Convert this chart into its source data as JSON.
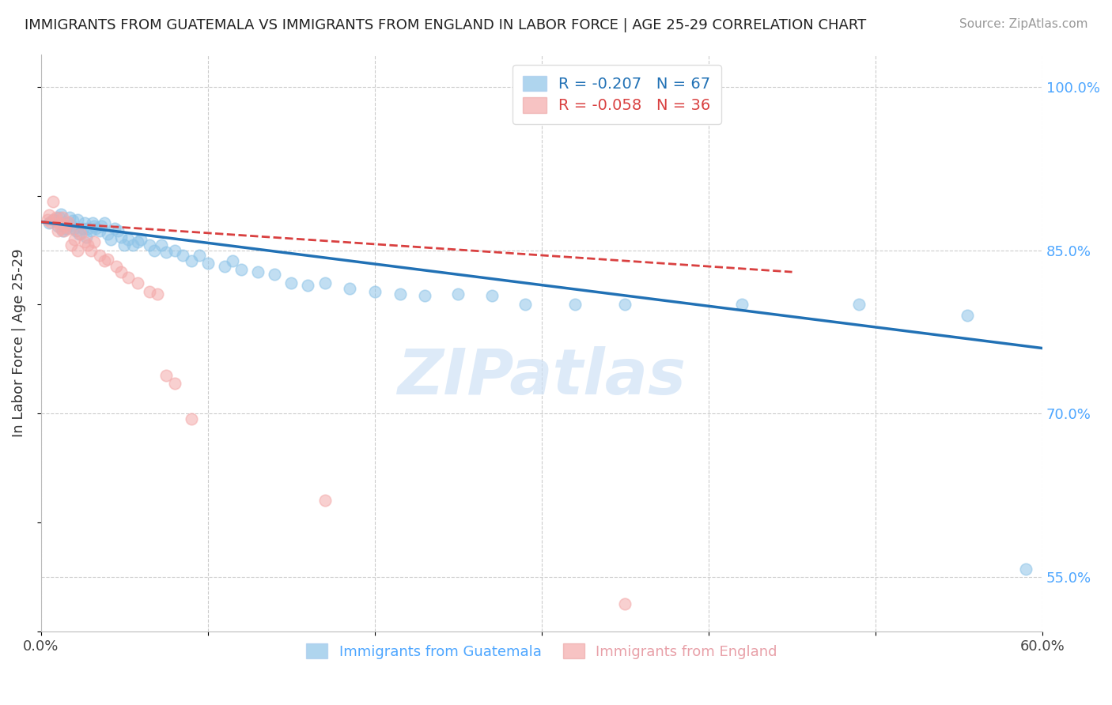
{
  "title": "IMMIGRANTS FROM GUATEMALA VS IMMIGRANTS FROM ENGLAND IN LABOR FORCE | AGE 25-29 CORRELATION CHART",
  "source": "Source: ZipAtlas.com",
  "ylabel": "In Labor Force | Age 25-29",
  "xlim": [
    0.0,
    0.6
  ],
  "ylim": [
    0.5,
    1.03
  ],
  "xtick_positions": [
    0.0,
    0.1,
    0.2,
    0.3,
    0.4,
    0.5,
    0.6
  ],
  "xticklabels": [
    "0.0%",
    "",
    "",
    "",
    "",
    "",
    "60.0%"
  ],
  "yticks_right": [
    0.55,
    0.7,
    0.85,
    1.0
  ],
  "yticklabels_right": [
    "55.0%",
    "70.0%",
    "85.0%",
    "100.0%"
  ],
  "R_blue": -0.207,
  "N_blue": 67,
  "R_pink": -0.058,
  "N_pink": 36,
  "blue_color": "#8ec4e8",
  "pink_color": "#f4aaaa",
  "trendline_blue_color": "#2171b5",
  "trendline_pink_color": "#d94040",
  "watermark_text": "ZIPatlas",
  "legend_label_blue": "Immigrants from Guatemala",
  "legend_label_pink": "Immigrants from England",
  "blue_trendline_x": [
    0.0,
    0.6
  ],
  "blue_trendline_y": [
    0.876,
    0.76
  ],
  "pink_trendline_x": [
    0.0,
    0.45
  ],
  "pink_trendline_y": [
    0.876,
    0.83
  ],
  "blue_x": [
    0.005,
    0.007,
    0.01,
    0.011,
    0.012,
    0.013,
    0.014,
    0.015,
    0.016,
    0.017,
    0.018,
    0.019,
    0.02,
    0.021,
    0.022,
    0.023,
    0.025,
    0.026,
    0.027,
    0.028,
    0.03,
    0.031,
    0.032,
    0.033,
    0.035,
    0.036,
    0.038,
    0.04,
    0.042,
    0.044,
    0.046,
    0.048,
    0.05,
    0.052,
    0.055,
    0.058,
    0.06,
    0.065,
    0.068,
    0.072,
    0.075,
    0.08,
    0.085,
    0.09,
    0.095,
    0.1,
    0.11,
    0.115,
    0.12,
    0.13,
    0.14,
    0.15,
    0.16,
    0.17,
    0.185,
    0.2,
    0.215,
    0.23,
    0.25,
    0.27,
    0.29,
    0.32,
    0.35,
    0.42,
    0.49,
    0.555,
    0.59
  ],
  "blue_y": [
    0.875,
    0.878,
    0.872,
    0.88,
    0.883,
    0.868,
    0.876,
    0.87,
    0.875,
    0.88,
    0.873,
    0.877,
    0.87,
    0.868,
    0.878,
    0.865,
    0.87,
    0.875,
    0.862,
    0.87,
    0.868,
    0.875,
    0.872,
    0.87,
    0.868,
    0.872,
    0.875,
    0.865,
    0.86,
    0.87,
    0.868,
    0.862,
    0.855,
    0.86,
    0.855,
    0.858,
    0.86,
    0.855,
    0.85,
    0.855,
    0.848,
    0.85,
    0.845,
    0.84,
    0.845,
    0.838,
    0.835,
    0.84,
    0.832,
    0.83,
    0.828,
    0.82,
    0.818,
    0.82,
    0.815,
    0.812,
    0.81,
    0.808,
    0.81,
    0.808,
    0.8,
    0.8,
    0.8,
    0.8,
    0.8,
    0.79,
    0.557
  ],
  "pink_x": [
    0.004,
    0.005,
    0.006,
    0.007,
    0.008,
    0.009,
    0.01,
    0.011,
    0.012,
    0.013,
    0.014,
    0.015,
    0.016,
    0.017,
    0.018,
    0.02,
    0.022,
    0.024,
    0.026,
    0.028,
    0.03,
    0.032,
    0.035,
    0.038,
    0.04,
    0.045,
    0.048,
    0.052,
    0.058,
    0.065,
    0.07,
    0.075,
    0.08,
    0.09,
    0.17,
    0.35
  ],
  "pink_y": [
    0.878,
    0.882,
    0.876,
    0.895,
    0.878,
    0.88,
    0.868,
    0.875,
    0.87,
    0.88,
    0.868,
    0.873,
    0.876,
    0.87,
    0.855,
    0.86,
    0.85,
    0.865,
    0.858,
    0.855,
    0.85,
    0.858,
    0.845,
    0.84,
    0.842,
    0.835,
    0.83,
    0.825,
    0.82,
    0.812,
    0.81,
    0.735,
    0.728,
    0.695,
    0.62,
    0.525
  ]
}
